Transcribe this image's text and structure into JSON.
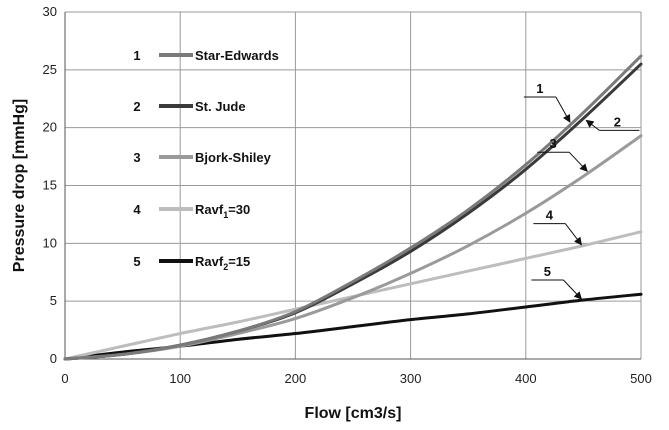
{
  "chart_data": {
    "type": "line",
    "title": "",
    "xlabel": "Flow [cm3/s]",
    "ylabel": "Pressure drop [mmHg]",
    "xlim": [
      0,
      500
    ],
    "ylim": [
      0,
      30
    ],
    "xticks": [
      "0",
      "100",
      "200",
      "300",
      "400",
      "500"
    ],
    "yticks": [
      "0",
      "5",
      "10",
      "15",
      "20",
      "25",
      "30"
    ],
    "grid": true,
    "legend_position": "top-left",
    "series": [
      {
        "id": "1",
        "name": "Star-Edwards",
        "color": "#7a7a7a",
        "x": [
          0,
          50,
          100,
          150,
          200,
          250,
          300,
          350,
          400,
          450,
          500
        ],
        "y": [
          0,
          0.4,
          1.2,
          2.4,
          4.1,
          6.7,
          9.6,
          12.9,
          16.8,
          21.3,
          26.2
        ]
      },
      {
        "id": "2",
        "name": "St. Jude",
        "color": "#3a3a3a",
        "x": [
          0,
          50,
          100,
          150,
          200,
          250,
          300,
          350,
          400,
          450,
          500
        ],
        "y": [
          0,
          0.4,
          1.2,
          2.4,
          4.0,
          6.5,
          9.3,
          12.6,
          16.4,
          20.8,
          25.5
        ]
      },
      {
        "id": "3",
        "name": "Bjork-Shiley",
        "color": "#9a9a9a",
        "x": [
          0,
          50,
          100,
          150,
          200,
          250,
          300,
          350,
          400,
          450,
          500
        ],
        "y": [
          0,
          0.4,
          1.1,
          2.2,
          3.5,
          5.3,
          7.4,
          9.8,
          12.6,
          15.8,
          19.3
        ]
      },
      {
        "id": "4",
        "name": "Ravf1=30",
        "name_main": "Ravf",
        "name_sub": "1",
        "name_rest": "=30",
        "color": "#bdbdbd",
        "x": [
          0,
          50,
          100,
          150,
          200,
          250,
          300,
          350,
          400,
          450,
          500
        ],
        "y": [
          0,
          1.1,
          2.2,
          3.2,
          4.3,
          5.4,
          6.5,
          7.6,
          8.7,
          9.8,
          11.0
        ]
      },
      {
        "id": "5",
        "name": "Ravf2=15",
        "name_main": "Ravf",
        "name_sub": "2",
        "name_rest": "=15",
        "color": "#111111",
        "x": [
          0,
          50,
          100,
          150,
          200,
          250,
          300,
          350,
          400,
          450,
          500
        ],
        "y": [
          0,
          0.6,
          1.1,
          1.7,
          2.2,
          2.8,
          3.4,
          3.9,
          4.5,
          5.1,
          5.6
        ]
      }
    ],
    "annotations": [
      {
        "label": "1",
        "series": "1",
        "at_x": 440
      },
      {
        "label": "2",
        "series": "2",
        "at_x": 450
      },
      {
        "label": "3",
        "series": "3",
        "at_x": 455
      },
      {
        "label": "4",
        "series": "4",
        "at_x": 450
      },
      {
        "label": "5",
        "series": "5",
        "at_x": 450
      }
    ]
  }
}
